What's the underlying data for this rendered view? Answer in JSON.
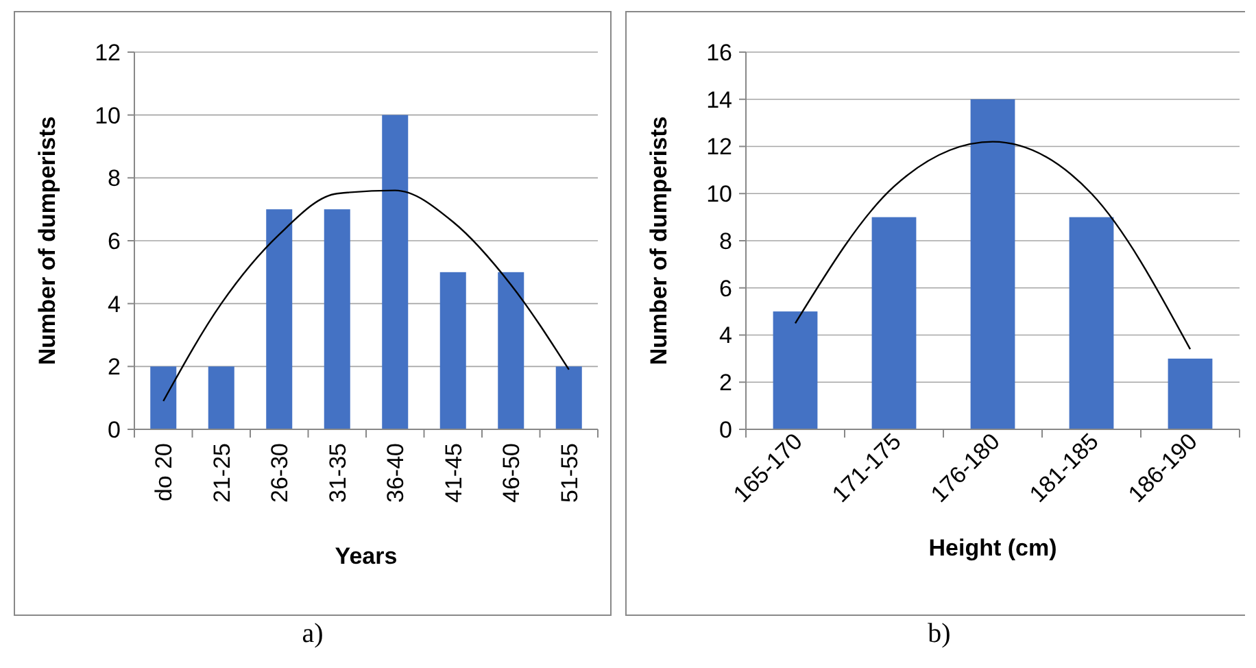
{
  "chart_data": [
    {
      "type": "bar",
      "xlabel": "Years",
      "ylabel": "Number of dumperists",
      "categories": [
        "do 20",
        "21-25",
        "26-30",
        "31-35",
        "36-40",
        "41-45",
        "46-50",
        "51-55"
      ],
      "ylim": [
        0,
        12
      ],
      "yticks": [
        0,
        2,
        4,
        6,
        8,
        10,
        12
      ],
      "grid": "y",
      "annotations": [
        "a)"
      ],
      "series": [
        {
          "color": "#4472c4",
          "values": [
            2,
            2,
            7,
            7,
            10,
            5,
            5,
            2
          ]
        },
        {
          "type": "line",
          "color": "#000000",
          "values": [
            0.9,
            4.0,
            6.2,
            7.5,
            7.6,
            6.6,
            4.6,
            1.9
          ]
        }
      ]
    },
    {
      "type": "bar",
      "xlabel": "Height (cm)",
      "ylabel": "Number of dumperists",
      "categories": [
        "165-170",
        "171-175",
        "176-180",
        "181-185",
        "186-190"
      ],
      "ylim": [
        0,
        16
      ],
      "yticks": [
        0,
        2,
        4,
        6,
        8,
        10,
        12,
        14,
        16
      ],
      "grid": "y",
      "annotations": [
        "b)"
      ],
      "series": [
        {
          "color": "#4472c4",
          "values": [
            5,
            9,
            14,
            9,
            3
          ]
        },
        {
          "type": "line",
          "color": "#000000",
          "values": [
            4.5,
            10.3,
            12.2,
            10.0,
            3.4
          ]
        }
      ]
    }
  ]
}
